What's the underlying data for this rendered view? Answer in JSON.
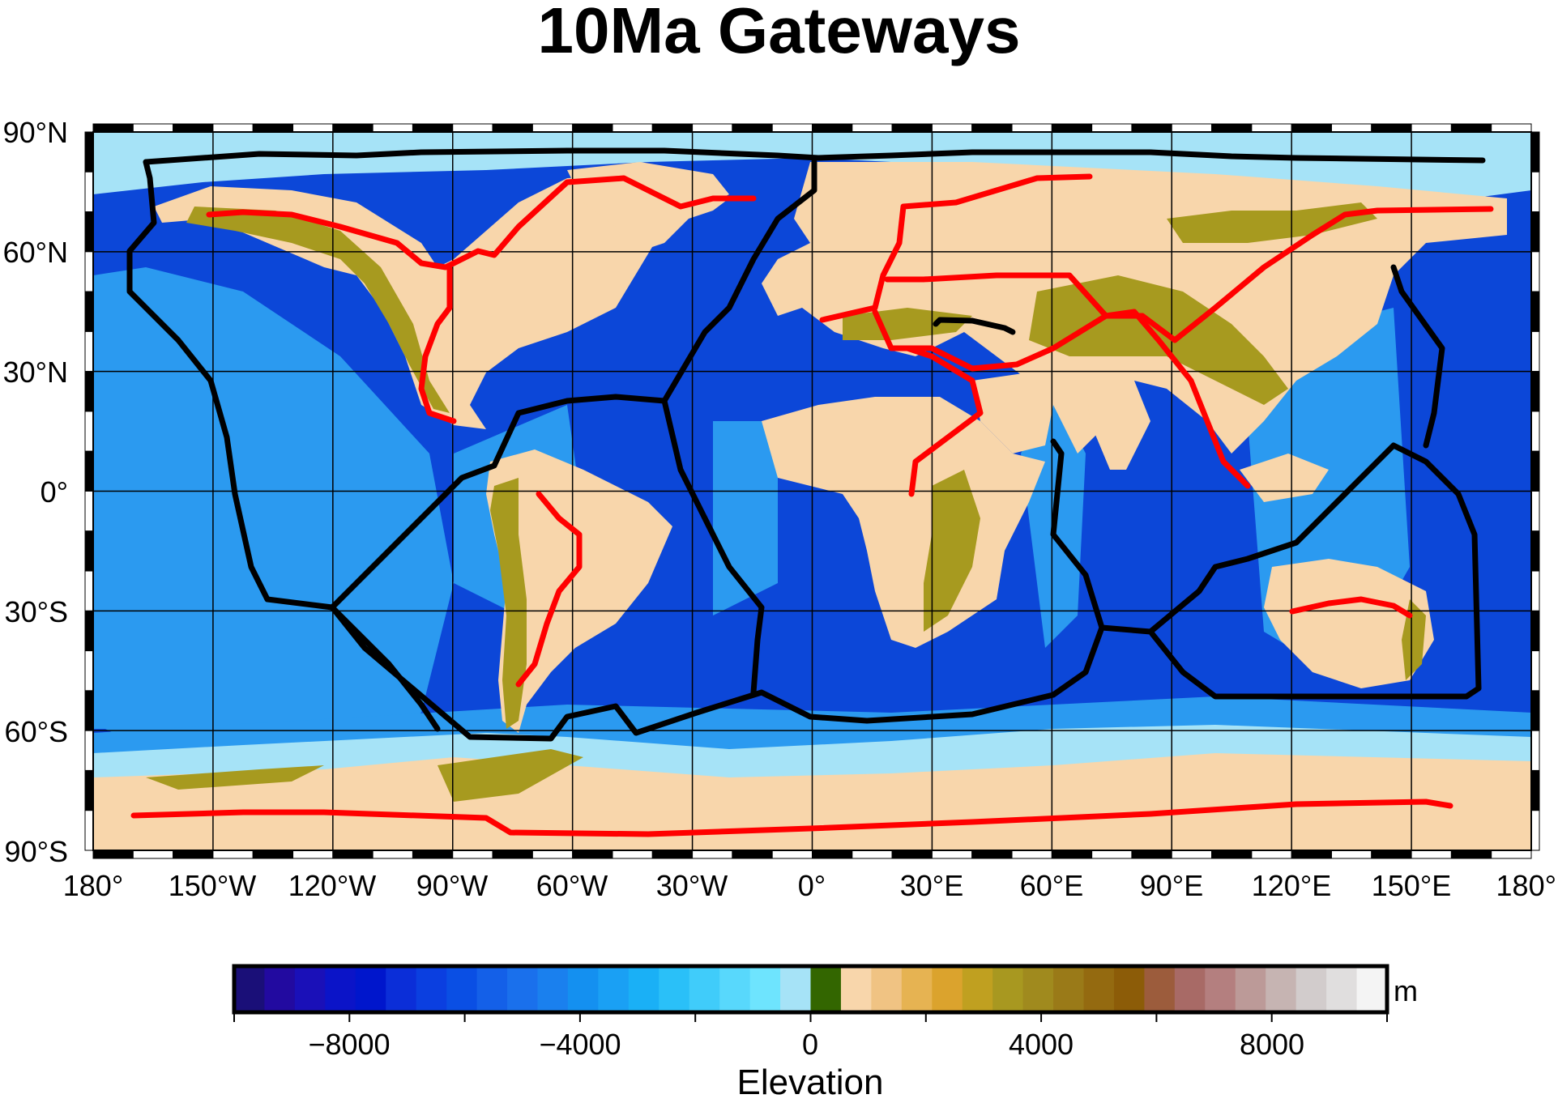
{
  "title": "10Ma Gateways",
  "map": {
    "lon_labels": [
      "180°",
      "150°W",
      "120°W",
      "90°W",
      "60°W",
      "30°W",
      "0°",
      "30°E",
      "60°E",
      "90°E",
      "120°E",
      "150°E",
      "180°"
    ],
    "lat_labels": [
      "90°N",
      "60°N",
      "30°N",
      "0°",
      "30°S",
      "60°S",
      "90°S"
    ],
    "colors": {
      "ocean_shelf": "#a6e3f7",
      "ocean_mid": "#2b9af0",
      "ocean_deep": "#0c47d8",
      "land_low": "#f8d6ab",
      "land_high": "#a79a1f",
      "ridge_line": "#000000",
      "gateway_line": "#ff0000"
    }
  },
  "colorbar": {
    "label": "Elevation",
    "unit": "m",
    "ticks": [
      "−8000",
      "−4000",
      "0",
      "4000",
      "8000"
    ],
    "range": [
      -10000,
      10000
    ],
    "colors": [
      "#1a0f78",
      "#220aa0",
      "#1a10b8",
      "#0b14c8",
      "#0016cc",
      "#0b2ed8",
      "#0b3fe0",
      "#0a4fe4",
      "#1460e8",
      "#1a70ec",
      "#1a80ee",
      "#1490f0",
      "#1aa0f4",
      "#1ab0f6",
      "#2ac0f8",
      "#40ccfa",
      "#58d8fc",
      "#6ee4fe",
      "#a6e3f7",
      "#336600",
      "#f8d6ab",
      "#f0c383",
      "#e6b352",
      "#dba32d",
      "#c0a020",
      "#a89820",
      "#a08a1e",
      "#9a7a18",
      "#946a10",
      "#8c5c08",
      "#9c5c3c",
      "#a86a66",
      "#b47f7f",
      "#bc9a98",
      "#c6b4b2",
      "#d2cccc",
      "#e0dede",
      "#f4f4f4"
    ]
  }
}
